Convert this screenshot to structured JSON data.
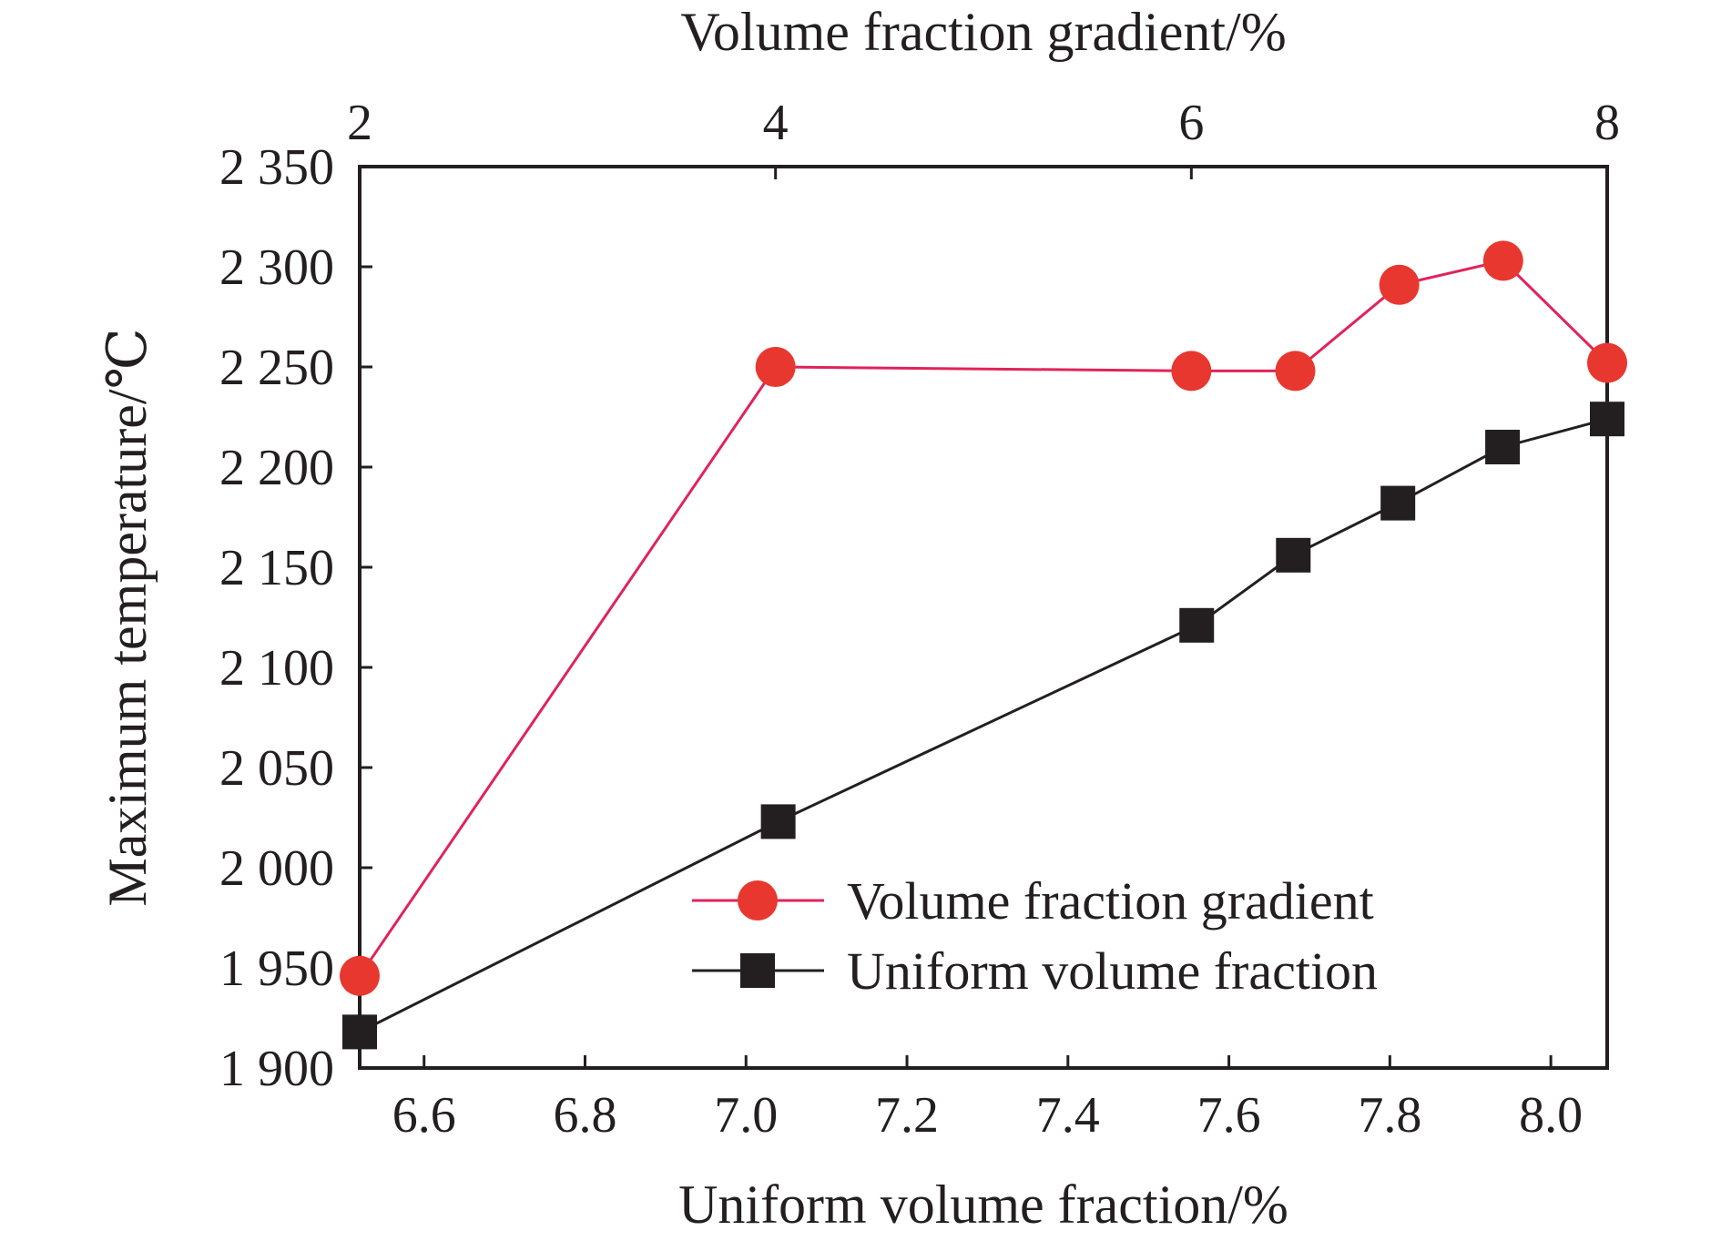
{
  "chart_data": {
    "type": "line",
    "x_bottom_label": "Uniform volume fraction/%",
    "x_top_label": "Volume fraction gradient/%",
    "ylabel": "Maximum temperature/℃",
    "ylim": [
      1900,
      2350
    ],
    "yticks": [
      1900,
      1950,
      2000,
      2050,
      2100,
      2150,
      2200,
      2250,
      2300,
      2350
    ],
    "ytick_labels": [
      "1 900",
      "1 950",
      "2 000",
      "2 050",
      "2 100",
      "2 150",
      "2 200",
      "2 250",
      "2 300",
      "2 350"
    ],
    "x_bottom_lim": [
      6.52,
      8.07
    ],
    "x_bottom_ticks": [
      6.6,
      6.8,
      7.0,
      7.2,
      7.4,
      7.6,
      7.8,
      8.0
    ],
    "x_bottom_tick_labels": [
      "6.6",
      "6.8",
      "7.0",
      "7.2",
      "7.4",
      "7.6",
      "7.8",
      "8.0"
    ],
    "x_top_lim": [
      2,
      8
    ],
    "x_top_ticks": [
      2,
      4,
      6,
      8
    ],
    "x_top_tick_labels": [
      "2",
      "4",
      "6",
      "8"
    ],
    "grid": false,
    "legend_position": "bottom-right",
    "series": [
      {
        "name": "Volume fraction gradient",
        "axis": "top",
        "marker": "circle",
        "color": "#e8372f",
        "line_color": "#e0235a",
        "x": [
          2,
          4,
          6,
          6.5,
          7,
          7.5,
          8
        ],
        "y": [
          1946,
          2250,
          2248,
          2248,
          2291,
          2303,
          2252
        ]
      },
      {
        "name": "Uniform volume fraction",
        "axis": "bottom",
        "marker": "square",
        "color": "#231f20",
        "line_color": "#231f20",
        "x": [
          6.52,
          7.04,
          7.56,
          7.68,
          7.81,
          7.94,
          8.07
        ],
        "y": [
          1918,
          2023,
          2121,
          2156,
          2182,
          2210,
          2224
        ]
      }
    ]
  }
}
